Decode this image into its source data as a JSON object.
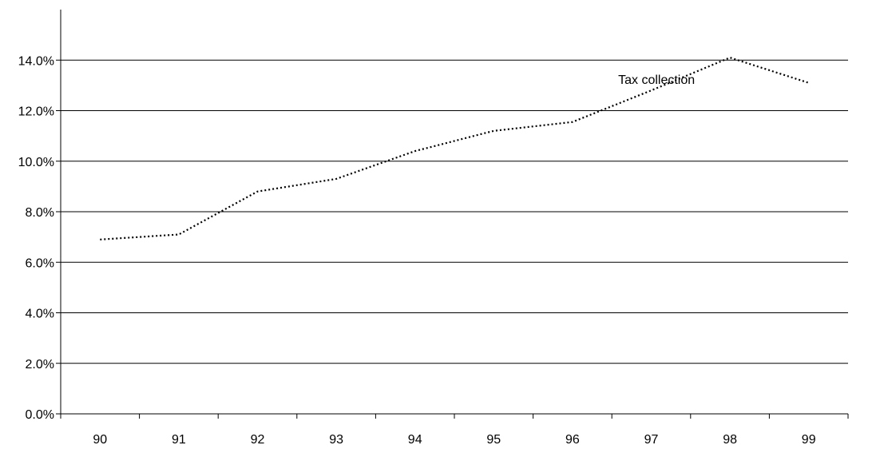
{
  "chart_data": {
    "type": "line",
    "title": "",
    "xlabel": "",
    "ylabel": "",
    "categories": [
      "90",
      "91",
      "92",
      "93",
      "94",
      "95",
      "96",
      "97",
      "98",
      "99"
    ],
    "ylim": [
      0,
      0.16
    ],
    "y_ticks": [
      "0.0%",
      "2.0%",
      "4.0%",
      "6.0%",
      "8.0%",
      "10.0%",
      "12.0%",
      "14.0%"
    ],
    "y_tick_values": [
      0,
      0.02,
      0.04,
      0.06,
      0.08,
      0.1,
      0.12,
      0.14
    ],
    "grid": "horizontal",
    "legend": "none",
    "series": [
      {
        "name": "Tax collection",
        "color": "#000000",
        "line_style": "dotted",
        "values": [
          0.069,
          0.071,
          0.088,
          0.093,
          0.104,
          0.112,
          0.1155,
          0.128,
          0.141,
          0.131
        ]
      }
    ]
  }
}
